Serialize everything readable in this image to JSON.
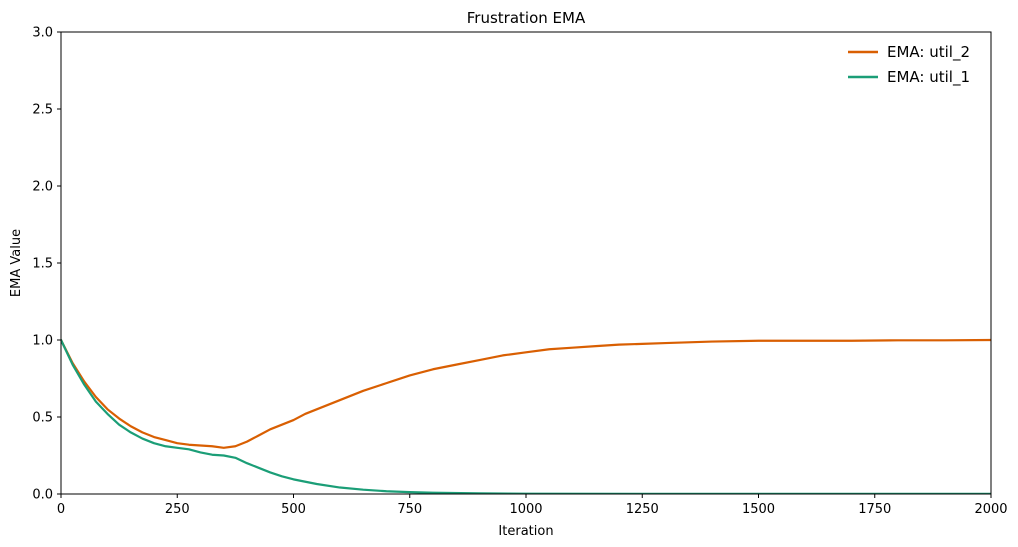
{
  "chart_data": {
    "type": "line",
    "title": "Frustration EMA",
    "xlabel": "Iteration",
    "ylabel": "EMA Value",
    "xlim": [
      0,
      2000
    ],
    "ylim": [
      0,
      3.0
    ],
    "xticks": [
      0,
      250,
      500,
      750,
      1000,
      1250,
      1500,
      1750,
      2000
    ],
    "yticks": [
      0.0,
      0.5,
      1.0,
      1.5,
      2.0,
      2.5,
      3.0
    ],
    "xtick_labels": [
      "0",
      "250",
      "500",
      "750",
      "1000",
      "1250",
      "1500",
      "1750",
      "2000"
    ],
    "ytick_labels": [
      "0.0",
      "0.5",
      "1.0",
      "1.5",
      "2.0",
      "2.5",
      "3.0"
    ],
    "grid": false,
    "legend_position": "top-right",
    "series": [
      {
        "name": "EMA: util_2",
        "color": "#d95f02",
        "x": [
          0,
          25,
          50,
          75,
          100,
          125,
          150,
          175,
          200,
          225,
          250,
          275,
          300,
          325,
          350,
          375,
          400,
          425,
          450,
          475,
          500,
          525,
          550,
          575,
          600,
          650,
          700,
          750,
          800,
          850,
          900,
          950,
          1000,
          1050,
          1100,
          1150,
          1200,
          1250,
          1300,
          1350,
          1400,
          1500,
          1600,
          1700,
          1800,
          1900,
          2000
        ],
        "y": [
          1.0,
          0.85,
          0.73,
          0.63,
          0.55,
          0.49,
          0.44,
          0.4,
          0.37,
          0.35,
          0.33,
          0.32,
          0.315,
          0.31,
          0.3,
          0.31,
          0.34,
          0.38,
          0.42,
          0.45,
          0.48,
          0.52,
          0.55,
          0.58,
          0.61,
          0.67,
          0.72,
          0.77,
          0.81,
          0.84,
          0.87,
          0.9,
          0.92,
          0.94,
          0.95,
          0.96,
          0.97,
          0.975,
          0.98,
          0.985,
          0.99,
          0.995,
          0.995,
          0.995,
          0.998,
          0.998,
          1.0
        ]
      },
      {
        "name": "EMA: util_1",
        "color": "#1b9e77",
        "x": [
          0,
          25,
          50,
          75,
          100,
          125,
          150,
          175,
          200,
          225,
          250,
          275,
          300,
          325,
          350,
          375,
          400,
          425,
          450,
          475,
          500,
          550,
          600,
          650,
          700,
          750,
          800,
          900,
          1000,
          1250,
          1500,
          1750,
          2000
        ],
        "y": [
          1.0,
          0.84,
          0.71,
          0.6,
          0.52,
          0.45,
          0.4,
          0.36,
          0.33,
          0.31,
          0.3,
          0.29,
          0.27,
          0.255,
          0.25,
          0.235,
          0.2,
          0.17,
          0.14,
          0.115,
          0.095,
          0.065,
          0.042,
          0.028,
          0.018,
          0.012,
          0.008,
          0.004,
          0.002,
          0.001,
          0.001,
          0.001,
          0.001
        ]
      }
    ]
  }
}
